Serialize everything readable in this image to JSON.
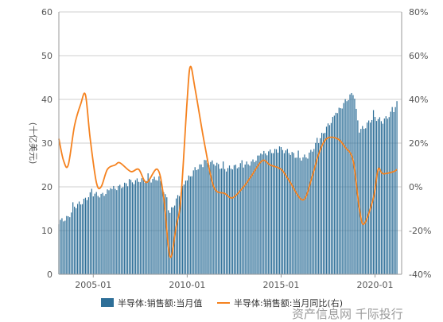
{
  "chart_data": {
    "type": "bar",
    "ylabel": "(十亿美元)",
    "x_ticks": [
      "2005-01",
      "2010-01",
      "2015-01",
      "2020-01"
    ],
    "x_range": [
      "2003-03",
      "2021-06"
    ],
    "left_axis": {
      "ylim": [
        0,
        60
      ],
      "ticks": [
        0,
        10,
        20,
        30,
        40,
        50,
        60
      ]
    },
    "right_axis": {
      "ylim": [
        -40,
        80
      ],
      "ticks": [
        "-40%",
        "-20%",
        "0%",
        "20%",
        "40%",
        "60%",
        "80%"
      ]
    },
    "grid": true,
    "legend_position": "bottom",
    "series": [
      {
        "name": "半导体:销售额:当月值",
        "kind": "bar",
        "axis": "left",
        "color": "#2e6f98",
        "anchors": [
          [
            "2003-03",
            12.0
          ],
          [
            "2003-09",
            13.0
          ],
          [
            "2004-01",
            15.5
          ],
          [
            "2004-06",
            16.5
          ],
          [
            "2004-12",
            18.5
          ],
          [
            "2005-06",
            18.0
          ],
          [
            "2006-01",
            19.5
          ],
          [
            "2006-06",
            20.0
          ],
          [
            "2007-01",
            21.0
          ],
          [
            "2007-06",
            21.5
          ],
          [
            "2008-01",
            21.5
          ],
          [
            "2008-07",
            22.0
          ],
          [
            "2008-10",
            19.0
          ],
          [
            "2009-02",
            14.0
          ],
          [
            "2009-06",
            17.0
          ],
          [
            "2009-12",
            21.0
          ],
          [
            "2010-06",
            24.0
          ],
          [
            "2011-01",
            25.5
          ],
          [
            "2011-06",
            25.5
          ],
          [
            "2012-01",
            24.0
          ],
          [
            "2012-06",
            24.5
          ],
          [
            "2013-01",
            25.0
          ],
          [
            "2013-06",
            25.5
          ],
          [
            "2014-01",
            27.5
          ],
          [
            "2014-06",
            28.0
          ],
          [
            "2015-01",
            28.5
          ],
          [
            "2015-06",
            28.0
          ],
          [
            "2016-01",
            26.5
          ],
          [
            "2016-06",
            27.0
          ],
          [
            "2016-12",
            30.0
          ],
          [
            "2017-06",
            33.5
          ],
          [
            "2018-01",
            37.0
          ],
          [
            "2018-06",
            39.5
          ],
          [
            "2018-11",
            41.5
          ],
          [
            "2019-03",
            33.0
          ],
          [
            "2019-06",
            33.5
          ],
          [
            "2019-12",
            36.0
          ],
          [
            "2020-06",
            35.0
          ],
          [
            "2020-12",
            37.0
          ],
          [
            "2021-03",
            39.0
          ]
        ]
      },
      {
        "name": "半导体:销售额:当月同比(右)",
        "kind": "line",
        "axis": "right",
        "color": "#f5821f",
        "points": [
          [
            "2003-03",
            22
          ],
          [
            "2003-06",
            12
          ],
          [
            "2003-09",
            10
          ],
          [
            "2004-01",
            28
          ],
          [
            "2004-05",
            38
          ],
          [
            "2004-08",
            42
          ],
          [
            "2004-11",
            22
          ],
          [
            "2005-03",
            2
          ],
          [
            "2005-06",
            0
          ],
          [
            "2005-10",
            8
          ],
          [
            "2006-03",
            10
          ],
          [
            "2006-06",
            11
          ],
          [
            "2007-01",
            7
          ],
          [
            "2007-06",
            8
          ],
          [
            "2007-11",
            2
          ],
          [
            "2008-06",
            8
          ],
          [
            "2008-10",
            -5
          ],
          [
            "2009-02",
            -32
          ],
          [
            "2009-06",
            -18
          ],
          [
            "2009-09",
            -5
          ],
          [
            "2010-01",
            40
          ],
          [
            "2010-03",
            55
          ],
          [
            "2010-06",
            45
          ],
          [
            "2010-12",
            20
          ],
          [
            "2011-06",
            0
          ],
          [
            "2012-01",
            -3
          ],
          [
            "2012-06",
            -5
          ],
          [
            "2013-01",
            0
          ],
          [
            "2013-06",
            5
          ],
          [
            "2014-01",
            12
          ],
          [
            "2014-06",
            10
          ],
          [
            "2015-01",
            8
          ],
          [
            "2015-06",
            3
          ],
          [
            "2016-03",
            -6
          ],
          [
            "2016-09",
            5
          ],
          [
            "2017-01",
            15
          ],
          [
            "2017-06",
            22
          ],
          [
            "2018-01",
            22
          ],
          [
            "2018-06",
            18
          ],
          [
            "2018-11",
            12
          ],
          [
            "2019-03",
            -10
          ],
          [
            "2019-06",
            -17
          ],
          [
            "2019-12",
            -5
          ],
          [
            "2020-03",
            8
          ],
          [
            "2020-06",
            6
          ],
          [
            "2021-01",
            7
          ],
          [
            "2021-03",
            8
          ]
        ]
      }
    ]
  },
  "watermark": "资产信息网 千际投行"
}
